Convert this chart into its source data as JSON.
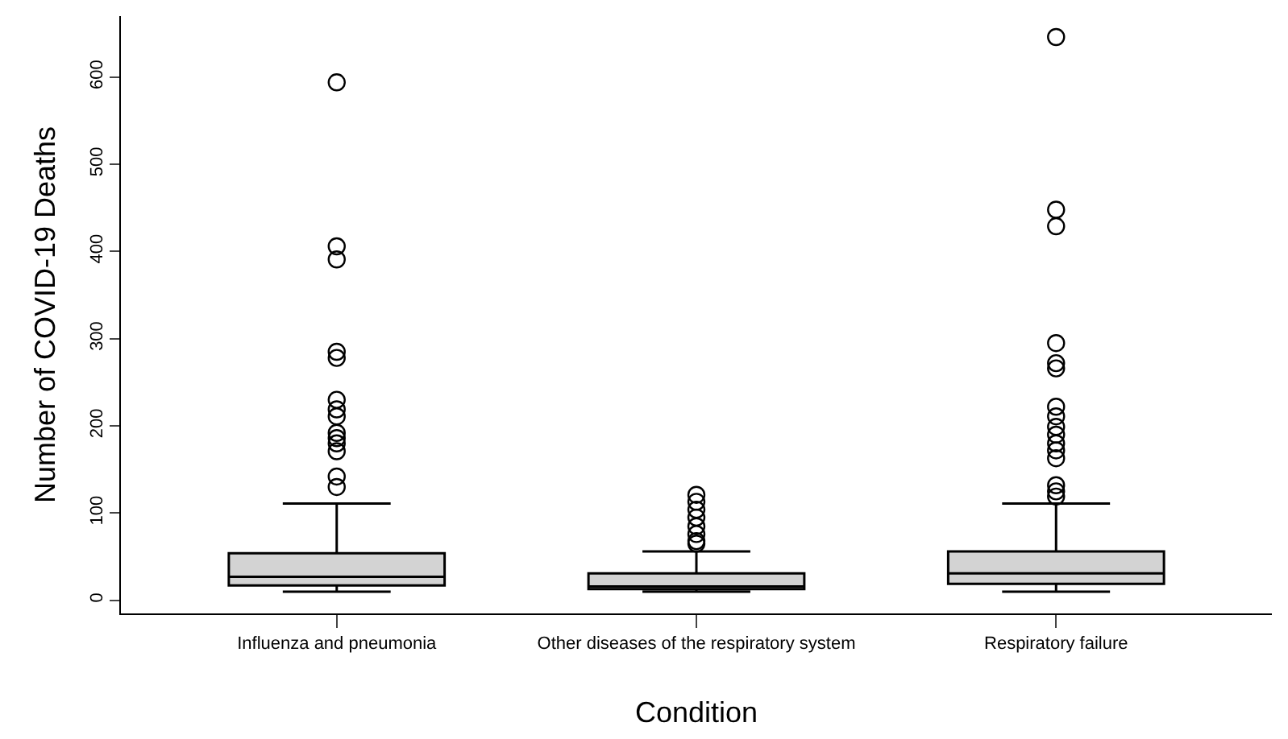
{
  "chart_data": {
    "type": "box",
    "xlabel": "Condition",
    "ylabel": "Number of COVID-19 Deaths",
    "categories": [
      "Influenza and pneumonia",
      "Other diseases of the respiratory system",
      "Respiratory failure"
    ],
    "color": "#d3d3d3",
    "boxes": [
      {
        "low": 10,
        "q1": 17,
        "median": 27,
        "q3": 54,
        "high": 111,
        "outliers": [
          594,
          406,
          391,
          285,
          278,
          230,
          219,
          211,
          192,
          186,
          180,
          171,
          142,
          130
        ]
      },
      {
        "low": 10,
        "q1": 13,
        "median": 16,
        "q3": 31,
        "high": 56,
        "outliers": [
          121,
          113,
          104,
          95,
          85,
          76,
          68,
          65
        ]
      },
      {
        "low": 10,
        "q1": 19,
        "median": 31,
        "q3": 56,
        "high": 111,
        "outliers": [
          646,
          448,
          429,
          295,
          272,
          266,
          222,
          211,
          199,
          190,
          180,
          172,
          163,
          132,
          125,
          119
        ]
      }
    ],
    "ylim": [
      -15,
      670
    ],
    "yticks": [
      0,
      100,
      200,
      300,
      400,
      500,
      600
    ],
    "marker": "circle"
  }
}
